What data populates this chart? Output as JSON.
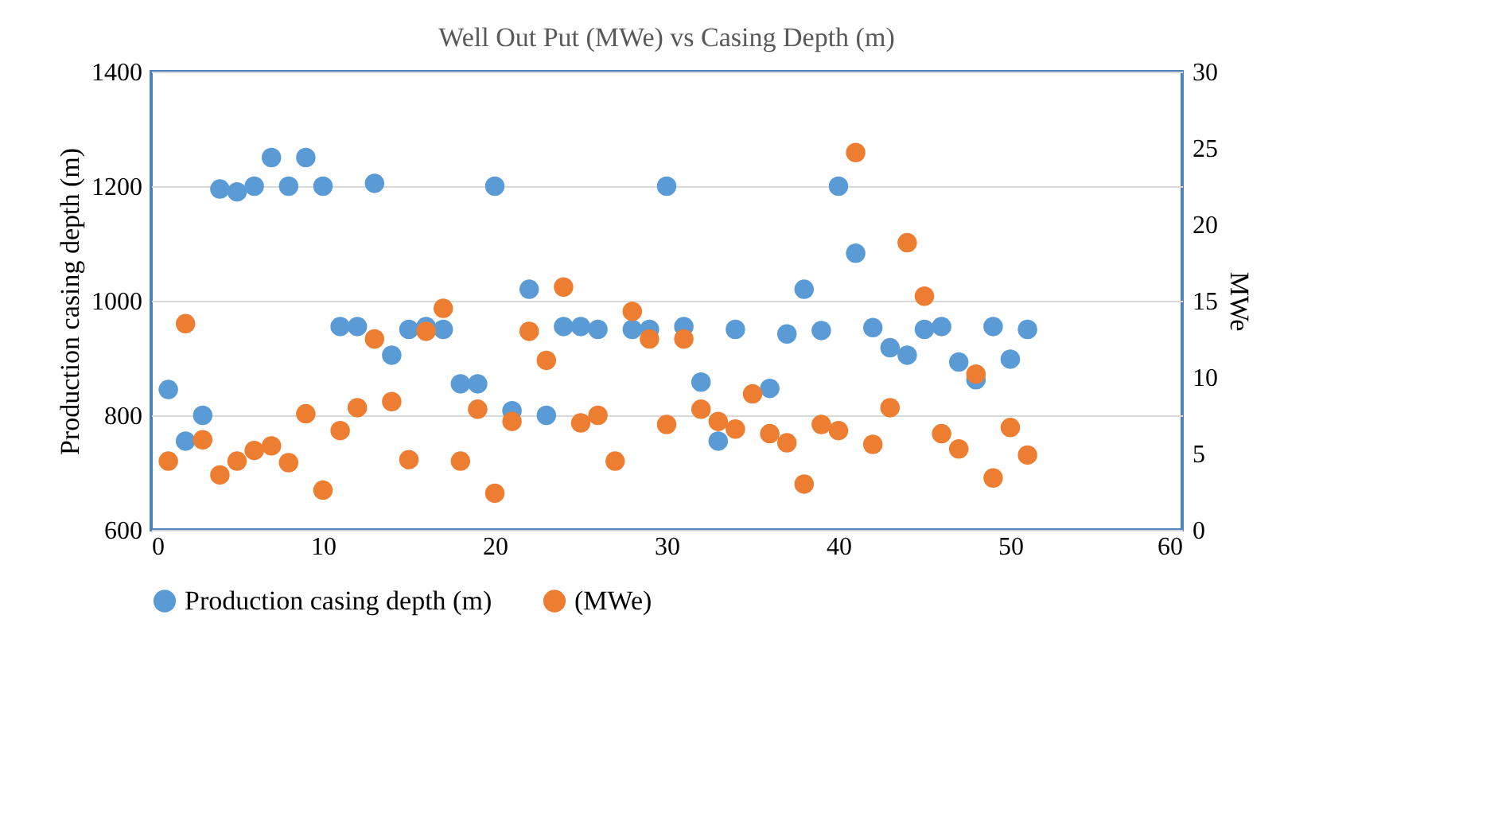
{
  "chart_data": {
    "type": "scatter",
    "title": "Well Out Put  (MWe) vs Casing Depth (m)",
    "ylabel": "Production casing depth (m)",
    "y2label": "MWe",
    "x": [
      1,
      2,
      3,
      4,
      5,
      6,
      7,
      8,
      9,
      10,
      11,
      12,
      13,
      14,
      15,
      16,
      17,
      18,
      19,
      20,
      21,
      22,
      23,
      24,
      25,
      26,
      27,
      28,
      29,
      30,
      31,
      32,
      33,
      34,
      35,
      36,
      37,
      38,
      39,
      40,
      41,
      42,
      43,
      44,
      45,
      46,
      47,
      48,
      49,
      50,
      51
    ],
    "xlim": [
      0,
      60
    ],
    "xticks": [
      0,
      10,
      20,
      30,
      40,
      50,
      60
    ],
    "ylim": [
      600,
      1400
    ],
    "yticks": [
      600,
      800,
      1000,
      1200,
      1400
    ],
    "y2lim": [
      0,
      30
    ],
    "y2ticks": [
      0,
      5,
      10,
      15,
      20,
      25,
      30
    ],
    "grid": "y",
    "legend": "bottom",
    "marker": "circle",
    "series": [
      {
        "name": "Production casing depth (m)",
        "color": "#5b9bd5",
        "values": [
          845,
          755,
          800,
          1195,
          1190,
          1200,
          1250,
          1200,
          1250,
          1200,
          955,
          955,
          1205,
          905,
          950,
          955,
          950,
          855,
          855,
          1200,
          808,
          1020,
          800,
          955,
          955,
          950,
          null,
          950,
          950,
          1200,
          955,
          858,
          755,
          950,
          null,
          847,
          942,
          1020,
          948,
          1200,
          1083,
          953,
          918,
          905,
          950,
          955,
          893,
          862,
          955,
          898,
          950
        ]
      },
      {
        "name": "(MWe)",
        "color": "#ed7d31",
        "axis": "y2",
        "values": [
          4.5,
          13.5,
          5.9,
          3.6,
          4.5,
          5.2,
          5.5,
          4.4,
          7.6,
          2.6,
          6.5,
          8.0,
          12.5,
          8.4,
          4.6,
          13.0,
          14.5,
          4.5,
          7.9,
          2.4,
          7.1,
          13.0,
          11.1,
          15.9,
          7.0,
          7.5,
          4.5,
          14.3,
          12.5,
          6.9,
          12.5,
          7.9,
          7.1,
          6.6,
          8.9,
          6.3,
          5.7,
          3.0,
          6.9,
          6.5,
          24.7,
          5.6,
          8.0,
          18.8,
          15.3,
          6.3,
          5.3,
          10.2,
          3.4,
          6.7,
          4.9
        ]
      }
    ]
  }
}
